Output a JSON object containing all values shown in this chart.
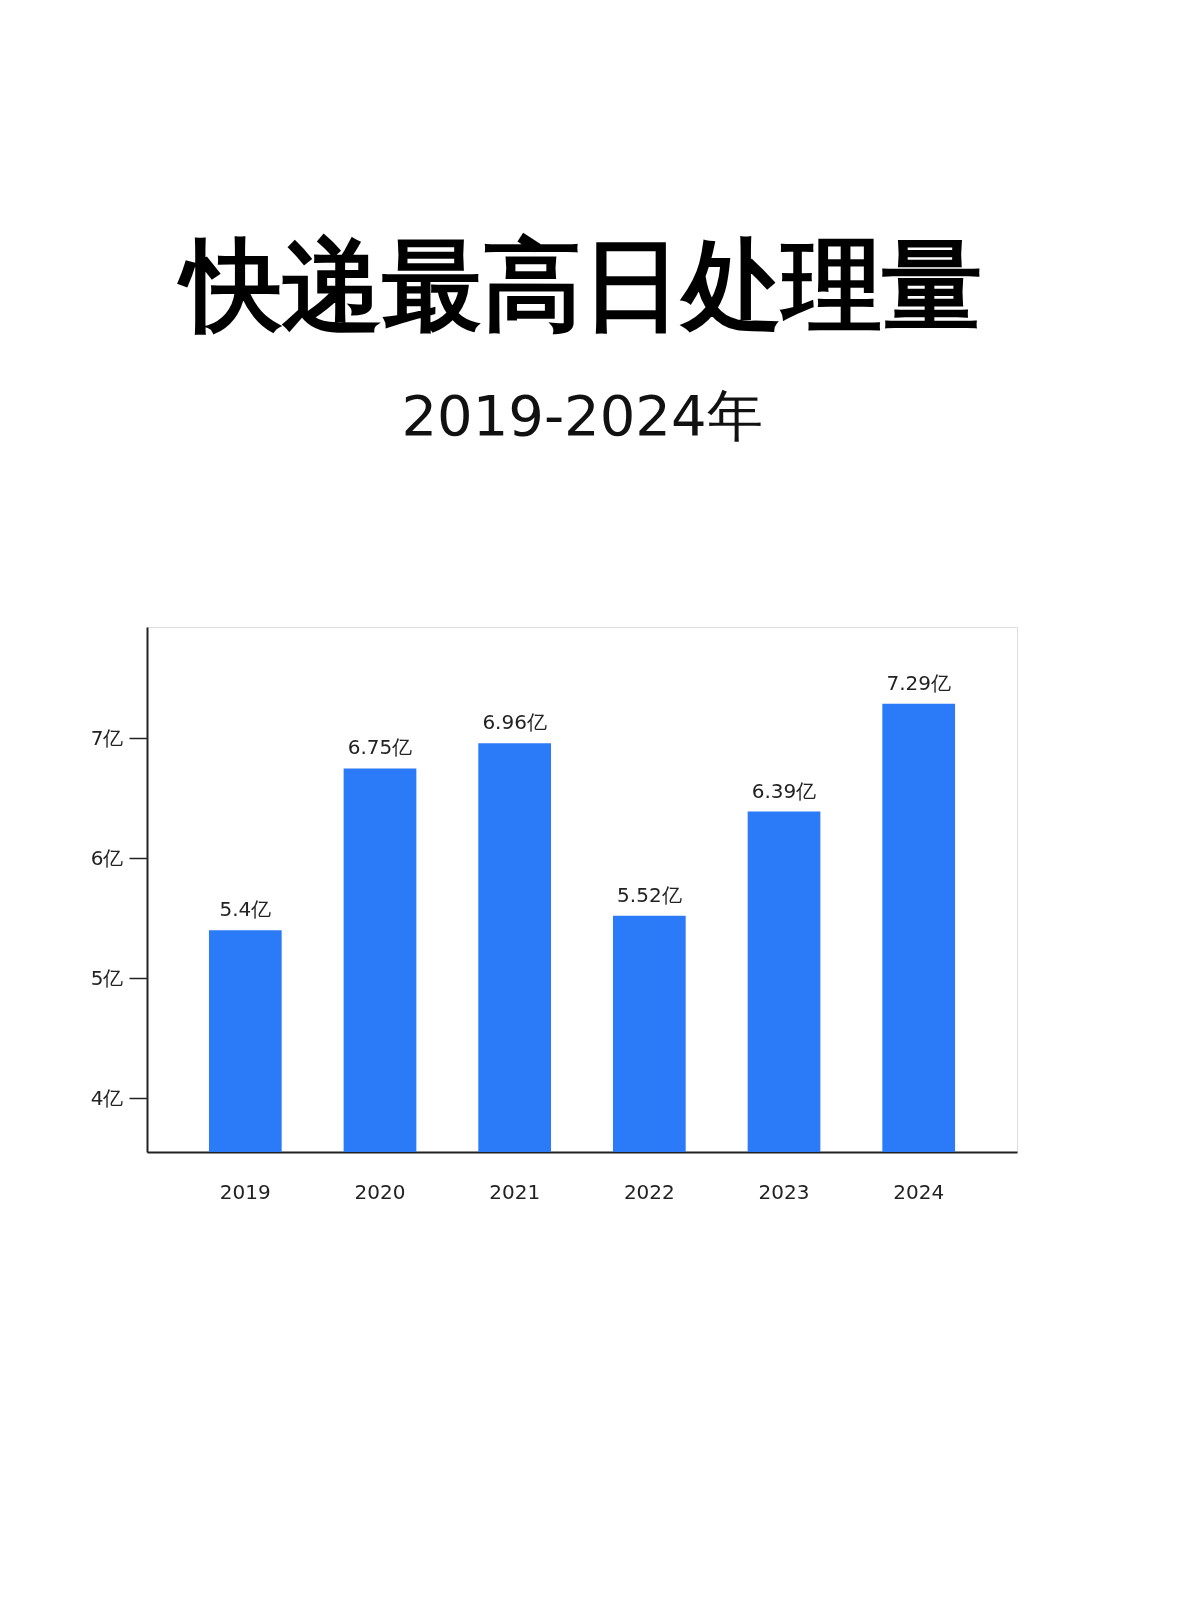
{
  "chart_data": {
    "type": "bar",
    "title": "快递最高日处理量",
    "subtitle": "2019-2024年",
    "categories": [
      "2019",
      "2020",
      "2021",
      "2022",
      "2023",
      "2024"
    ],
    "values": [
      5.4,
      6.75,
      6.96,
      5.52,
      6.39,
      7.29
    ],
    "value_labels": [
      "5.4亿",
      "6.75亿",
      "6.96亿",
      "5.52亿",
      "6.39亿",
      "7.29亿"
    ],
    "color": "#2b7af8",
    "ylim": [
      3.55,
      7.93
    ],
    "yticks": [
      {
        "value": 4,
        "label": "4亿"
      },
      {
        "value": 5,
        "label": "5亿"
      },
      {
        "value": 6,
        "label": "6亿"
      },
      {
        "value": 7,
        "label": "7亿"
      }
    ],
    "grid": false
  }
}
